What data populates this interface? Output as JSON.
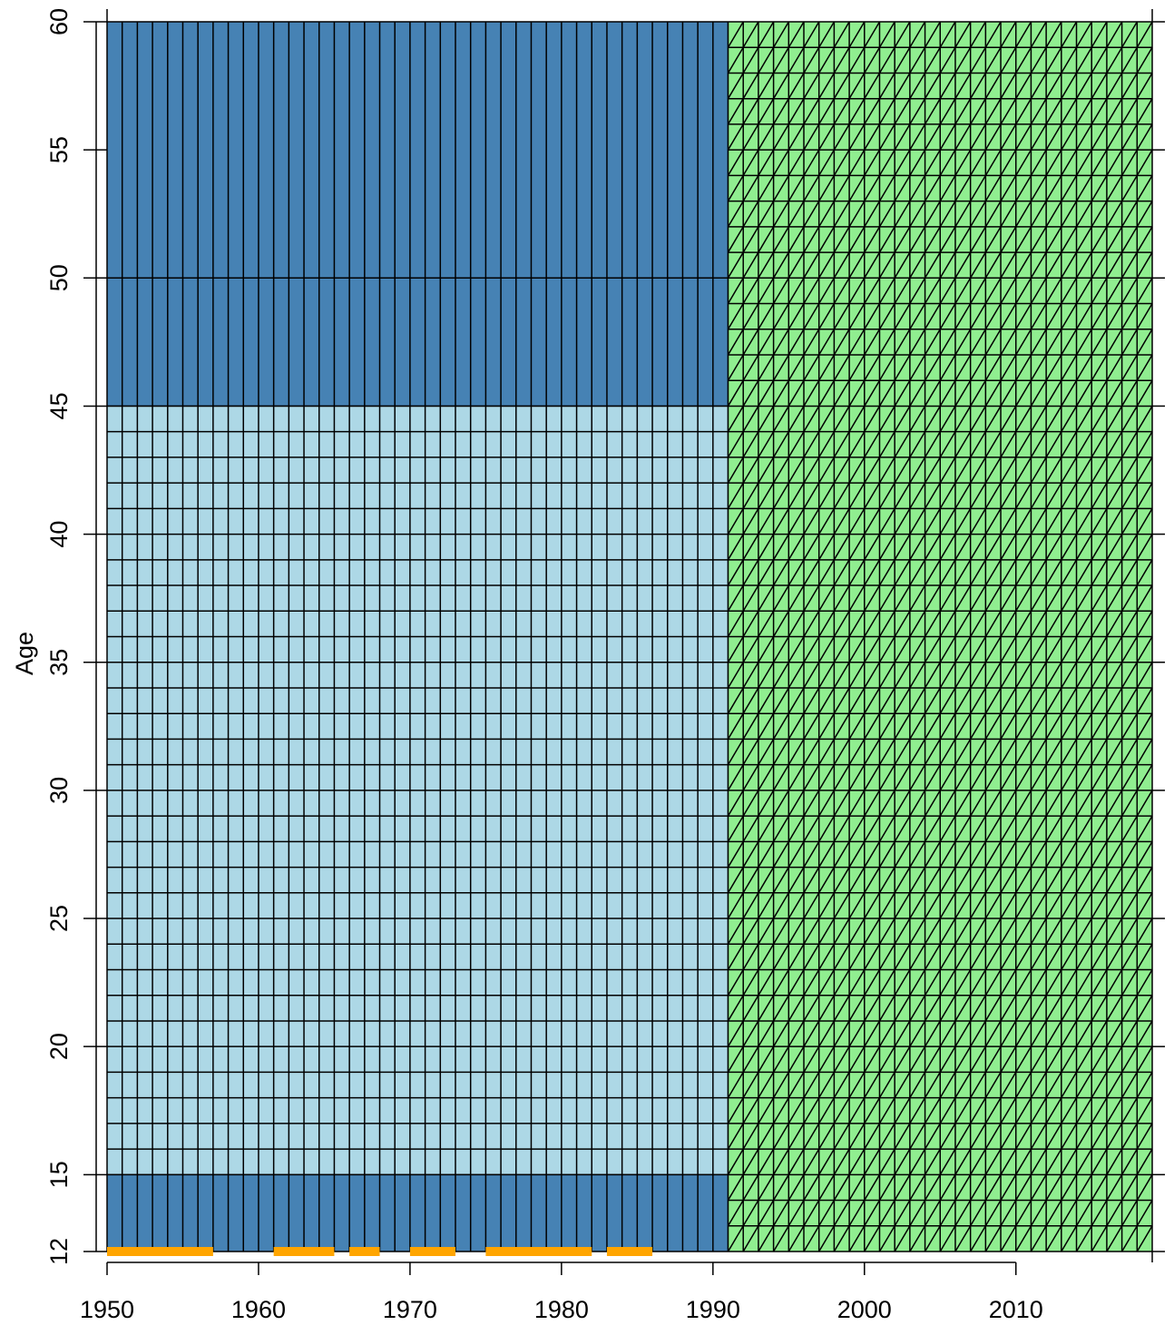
{
  "chart_data": {
    "type": "heatmap",
    "title": "",
    "xlabel": "",
    "ylabel": "Age",
    "xlim": [
      1950,
      2019
    ],
    "ylim": [
      12,
      60
    ],
    "x_ticks": [
      1950,
      1960,
      1970,
      1980,
      1990,
      2000,
      2010
    ],
    "y_ticks": [
      12,
      15,
      20,
      25,
      30,
      35,
      40,
      45,
      50,
      55,
      60
    ],
    "regions": [
      {
        "years": [
          1950,
          1991
        ],
        "ages": [
          45,
          60
        ],
        "color": "#4682b4",
        "cells": "single-year columns, age split at 50"
      },
      {
        "years": [
          1950,
          1991
        ],
        "ages": [
          15,
          45
        ],
        "color": "#add8e6",
        "cells": "single-year by single-age"
      },
      {
        "years": [
          1950,
          1991
        ],
        "ages": [
          12,
          15
        ],
        "color": "#4682b4",
        "cells": "single-year columns"
      },
      {
        "years": [
          1991,
          2019
        ],
        "ages": [
          12,
          60
        ],
        "color": "#90ee90",
        "cells": "single-year by single-age, Lexis triangles"
      }
    ],
    "marker_segments": {
      "color": "#ffa500",
      "age": 12,
      "year_ranges": [
        [
          1950,
          1957
        ],
        [
          1961,
          1965
        ],
        [
          1966,
          1968
        ],
        [
          1970,
          1973
        ],
        [
          1975,
          1982
        ],
        [
          1983,
          1986
        ]
      ]
    },
    "grid": false
  }
}
